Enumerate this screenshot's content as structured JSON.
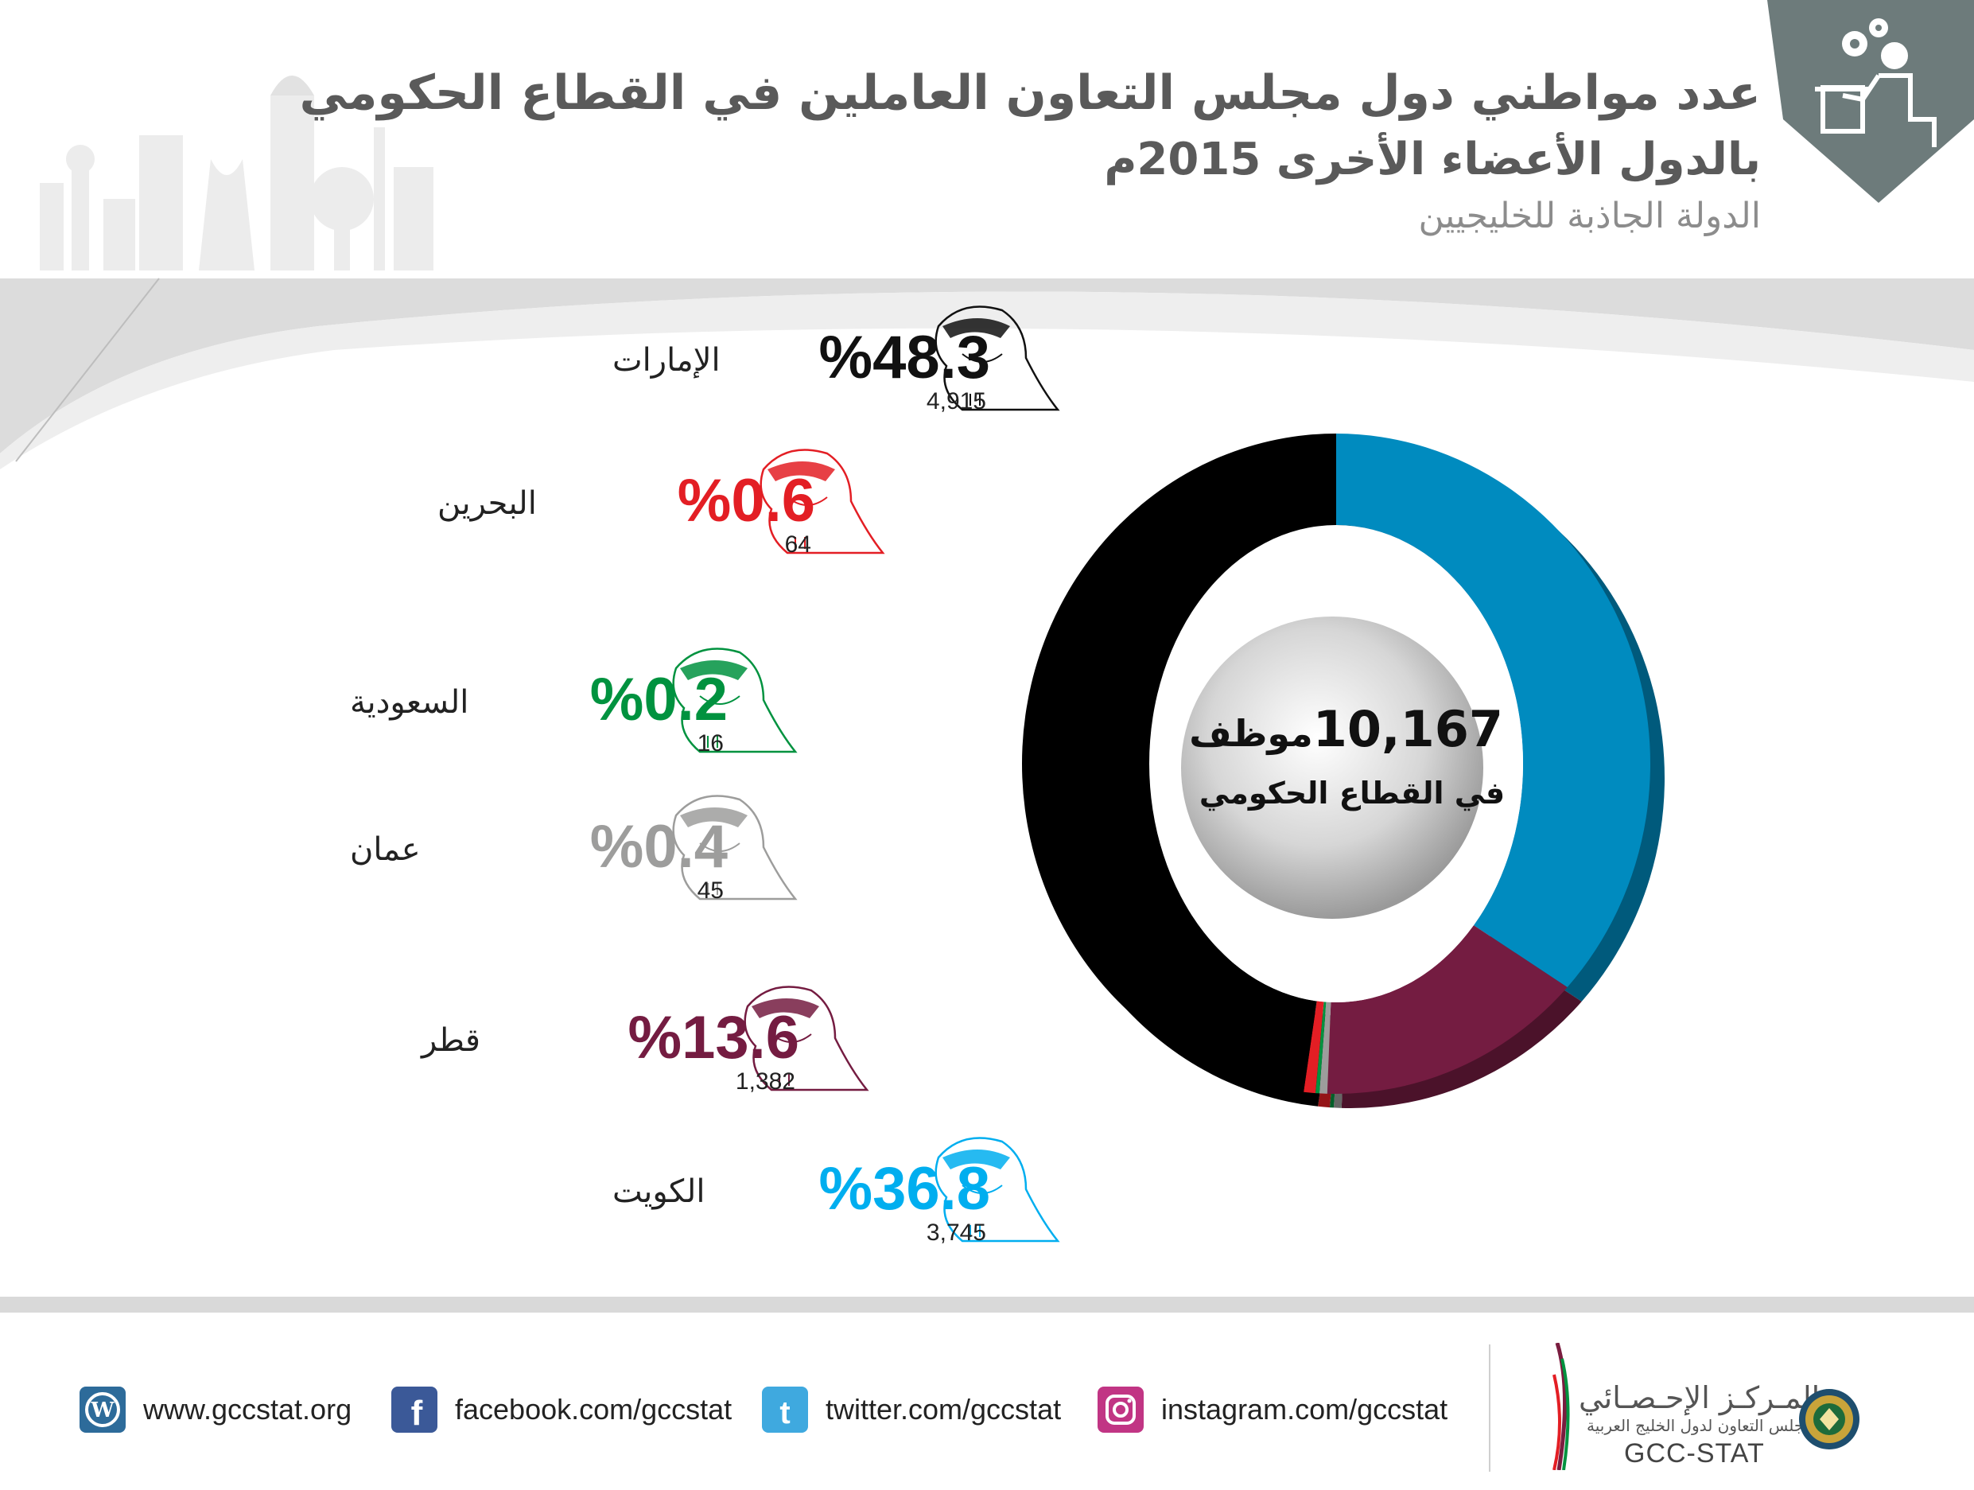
{
  "header": {
    "title_line1": "عدد مواطني دول مجلس التعاون العاملين  في القطاع  الحكومي",
    "title_line2": "بالدول الأعضاء الأخرى 2015م",
    "subtitle": "الدولة الجاذبة للخليجيين"
  },
  "center": {
    "total": "10,167",
    "unit": "موظف",
    "sector": "في القطاع الحكومي"
  },
  "chart_data": {
    "type": "pie",
    "style": "donut",
    "total": 10167,
    "slices": [
      {
        "name": "الإمارات",
        "percent": 48.3,
        "value": 4915,
        "color": "#000000"
      },
      {
        "name": "البحرين",
        "percent": 0.6,
        "value": 64,
        "color": "#e31e24"
      },
      {
        "name": "السعودية",
        "percent": 0.2,
        "value": 16,
        "color": "#00923f"
      },
      {
        "name": "عمان",
        "percent": 0.4,
        "value": 45,
        "color": "#9d9d9c"
      },
      {
        "name": "قطر",
        "percent": 13.6,
        "value": 1382,
        "color": "#741c41"
      },
      {
        "name": "الكويت",
        "percent": 36.8,
        "value": 3745,
        "color": "#008bbf"
      }
    ]
  },
  "legend": [
    {
      "name": "الإمارات",
      "pct": "%48.3",
      "count": "4,915",
      "color": "#111111"
    },
    {
      "name": "البحرين",
      "pct": "%0.6",
      "count": "64",
      "color": "#e31e24"
    },
    {
      "name": "السعودية",
      "pct": "%0.2",
      "count": "16",
      "color": "#00923f"
    },
    {
      "name": "عمان",
      "pct": "%0.4",
      "count": "45",
      "color": "#9d9d9c"
    },
    {
      "name": "قطر",
      "pct": "%13.6",
      "count": "1,382",
      "color": "#741c41"
    },
    {
      "name": "الكويت",
      "pct": "%36.8",
      "count": "3,745",
      "color": "#00aeef"
    }
  ],
  "footer": {
    "links": [
      {
        "icon": "wordpress-icon",
        "label": "www.gccstat.org"
      },
      {
        "icon": "facebook-icon",
        "label": "facebook.com/gccstat"
      },
      {
        "icon": "twitter-icon",
        "label": "twitter.com/gccstat"
      },
      {
        "icon": "instagram-icon",
        "label": "instagram.com/gccstat"
      }
    ],
    "logo_ar": "المـركـز الإحـصـائي",
    "logo_ar_sub": "لدول مجلس التعاون لدول الخليج العربية",
    "logo_en": "GCC-STAT"
  },
  "icons": {
    "badge": "office-worker-icon",
    "figures": "gulf-man-icon",
    "emblem": "gcc-emblem-icon"
  }
}
